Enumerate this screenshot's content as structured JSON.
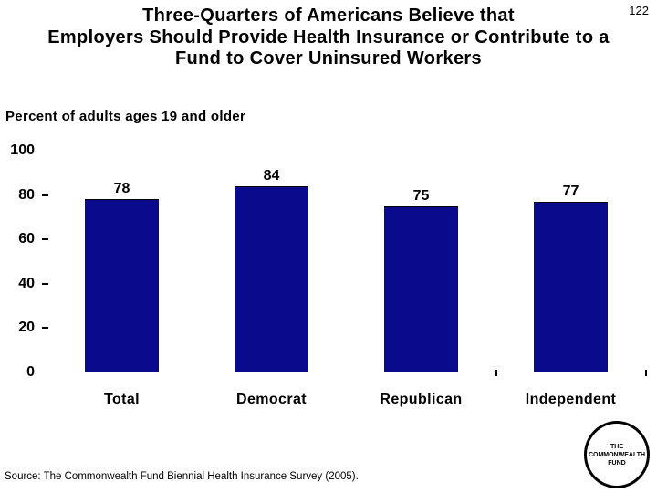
{
  "page_number": "122",
  "header": {
    "title_lines": [
      "Three-Quarters of Americans Believe that",
      "Employers Should Provide Health Insurance or Contribute to a",
      "Fund to Cover Uninsured Workers"
    ]
  },
  "subtitle": "Percent of adults ages 19 and older",
  "chart_data": {
    "type": "bar",
    "title": "Three-Quarters of Americans Believe that Employers Should Provide Health Insurance or Contribute to a Fund to Cover Uninsured Workers",
    "categories": [
      "Total",
      "Democrat",
      "Republican",
      "Independent"
    ],
    "values": [
      78,
      84,
      75,
      77
    ],
    "ylabel": "Percent of adults ages 19 and older",
    "xlabel": "",
    "ylim": [
      0,
      100
    ],
    "yticks": [
      0,
      20,
      40,
      60,
      80,
      100
    ],
    "dash_ticks": [
      20,
      40,
      60,
      80
    ],
    "grid": false,
    "legend": false,
    "bar_color": "#0a0a8c",
    "label_color": "#000000"
  },
  "source": "Source: The Commonwealth Fund Biennial Health Insurance Survey (2005).",
  "logo": {
    "lines": [
      "THE",
      "COMMONWEALTH",
      "FUND"
    ]
  }
}
